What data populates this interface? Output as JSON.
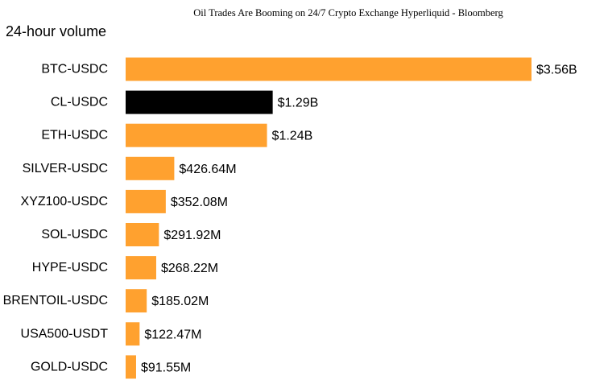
{
  "page": {
    "title": "Oil Trades Are Booming on 24/7 Crypto Exchange Hyperliquid - Bloomberg"
  },
  "chart_data": {
    "type": "bar",
    "orientation": "horizontal",
    "title": "24-hour volume",
    "xlabel": "",
    "ylabel": "",
    "unit": "USD",
    "categories": [
      "BTC-USDC",
      "CL-USDC",
      "ETH-USDC",
      "SILVER-USDC",
      "XYZ100-USDC",
      "SOL-USDC",
      "HYPE-USDC",
      "BRENTOIL-USDC",
      "USA500-USDT",
      "GOLD-USDC"
    ],
    "values": [
      3560000000,
      1290000000,
      1240000000,
      426640000,
      352080000,
      291920000,
      268220000,
      185020000,
      122470000,
      91550000
    ],
    "value_labels": [
      "$3.56B",
      "$1.29B",
      "$1.24B",
      "$426.64M",
      "$352.08M",
      "$291.92M",
      "$268.22M",
      "$185.02M",
      "$122.47M",
      "$91.55M"
    ],
    "colors": [
      "#FFA12F",
      "#000000",
      "#FFA12F",
      "#FFA12F",
      "#FFA12F",
      "#FFA12F",
      "#FFA12F",
      "#FFA12F",
      "#FFA12F",
      "#FFA12F"
    ],
    "grid": false,
    "legend": "none"
  }
}
